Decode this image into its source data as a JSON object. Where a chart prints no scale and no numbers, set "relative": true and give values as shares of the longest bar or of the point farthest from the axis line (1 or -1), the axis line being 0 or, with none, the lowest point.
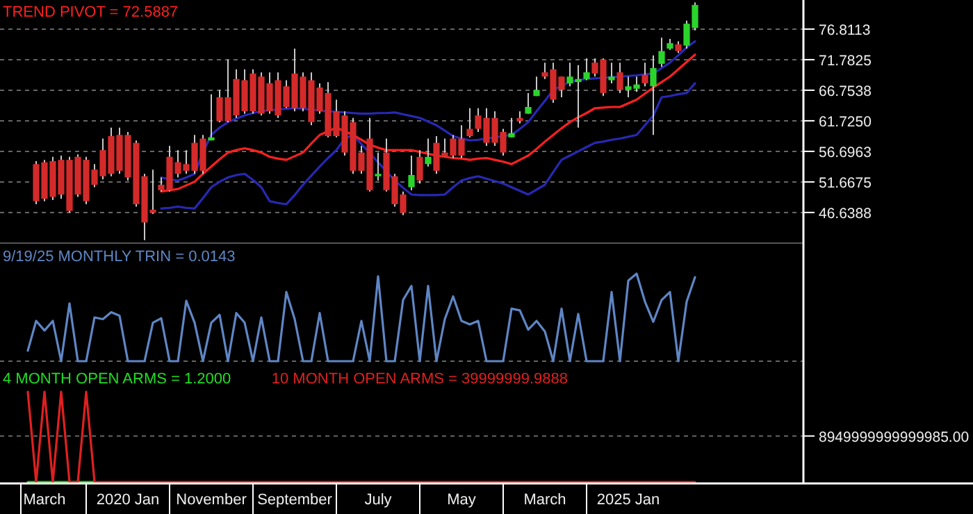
{
  "chart_data": [
    {
      "type": "candlestick",
      "ylim": [
        41.6,
        81.6
      ],
      "grid": "y",
      "tick_labels": "y",
      "yticks": [
        76.8113,
        71.7825,
        66.7538,
        {
          "value": 61.725,
          "label": "61.7250"
        },
        56.6963,
        51.6675,
        46.6388
      ],
      "categories": [
        null,
        null,
        null,
        null,
        null,
        null,
        null,
        null,
        null,
        null,
        null,
        null,
        null,
        null,
        null,
        null,
        null,
        null,
        null,
        null,
        null,
        null,
        null,
        null,
        null,
        null,
        null,
        null,
        null,
        null,
        null,
        null,
        null,
        null,
        null,
        null,
        null,
        null,
        null,
        null,
        null,
        null,
        null,
        null,
        null,
        null,
        null,
        null,
        null,
        null,
        null,
        null,
        null,
        null,
        null,
        null,
        null,
        null,
        null,
        null,
        null,
        null,
        null,
        null,
        null,
        null,
        null,
        null,
        null,
        null,
        null,
        null,
        null,
        null,
        null,
        null,
        null,
        null,
        null,
        null
      ],
      "ohlc": [
        [
          54.6,
          55.1,
          48.0,
          48.5
        ],
        [
          54.9,
          55.3,
          48.5,
          48.9
        ],
        [
          55.1,
          55.8,
          48.7,
          49.2
        ],
        [
          55.3,
          56.0,
          48.9,
          49.6
        ],
        [
          55.3,
          55.8,
          46.6,
          46.9
        ],
        [
          55.8,
          56.2,
          49.2,
          49.6
        ],
        [
          55.3,
          55.8,
          48.0,
          48.5
        ],
        [
          53.7,
          54.6,
          50.8,
          51.2
        ],
        [
          56.9,
          58.8,
          52.1,
          52.6
        ],
        [
          59.2,
          60.6,
          52.6,
          53.0
        ],
        [
          59.4,
          60.6,
          53.0,
          53.5
        ],
        [
          59.4,
          59.9,
          51.9,
          52.4
        ],
        [
          58.1,
          58.5,
          47.6,
          48.0
        ],
        [
          52.6,
          53.0,
          42.1,
          45.0
        ],
        [
          47.1,
          53.7,
          46.4,
          46.6
        ],
        [
          51.2,
          52.4,
          50.1,
          50.3
        ],
        [
          55.8,
          57.6,
          50.1,
          50.3
        ],
        [
          54.9,
          56.9,
          52.4,
          53.0
        ],
        [
          54.6,
          56.9,
          53.0,
          53.5
        ],
        [
          58.1,
          59.4,
          53.0,
          53.5
        ],
        [
          58.8,
          59.4,
          53.0,
          53.5
        ],
        [
          58.5,
          66.1,
          58.5,
          59.0
        ],
        [
          65.6,
          66.8,
          61.5,
          61.7
        ],
        [
          65.6,
          71.8,
          61.5,
          61.7
        ],
        [
          68.6,
          70.2,
          62.2,
          62.6
        ],
        [
          68.4,
          70.2,
          62.9,
          63.3
        ],
        [
          69.5,
          70.2,
          62.9,
          63.3
        ],
        [
          69.0,
          69.7,
          62.6,
          62.9
        ],
        [
          67.9,
          69.7,
          62.9,
          63.3
        ],
        [
          68.4,
          69.7,
          62.2,
          62.6
        ],
        [
          67.4,
          68.4,
          63.8,
          64.0
        ],
        [
          69.5,
          73.6,
          63.3,
          63.8
        ],
        [
          69.0,
          69.7,
          63.3,
          63.8
        ],
        [
          68.4,
          69.7,
          61.0,
          61.5
        ],
        [
          67.2,
          67.9,
          62.9,
          63.3
        ],
        [
          66.3,
          68.1,
          59.0,
          59.2
        ],
        [
          63.3,
          65.2,
          59.0,
          59.2
        ],
        [
          62.6,
          63.3,
          56.0,
          56.5
        ],
        [
          61.5,
          62.2,
          53.0,
          53.5
        ],
        [
          56.5,
          57.6,
          53.0,
          53.5
        ],
        [
          58.8,
          62.2,
          50.1,
          50.3
        ],
        [
          52.6,
          56.5,
          51.9,
          53.0
        ],
        [
          56.5,
          58.8,
          50.1,
          50.3
        ],
        [
          52.6,
          53.0,
          47.6,
          48.0
        ],
        [
          49.6,
          50.1,
          46.2,
          46.6
        ],
        [
          50.8,
          56.0,
          50.3,
          52.8
        ],
        [
          55.8,
          56.9,
          51.4,
          51.9
        ],
        [
          54.6,
          58.8,
          54.2,
          55.8
        ],
        [
          58.1,
          59.2,
          53.0,
          53.5
        ],
        [
          56.5,
          58.8,
          55.8,
          55.8
        ],
        [
          58.8,
          59.4,
          55.6,
          56.0
        ],
        [
          58.8,
          61.0,
          55.6,
          56.0
        ],
        [
          60.4,
          63.8,
          59.0,
          59.2
        ],
        [
          62.6,
          63.8,
          59.9,
          60.4
        ],
        [
          62.2,
          63.8,
          57.6,
          58.1
        ],
        [
          62.2,
          63.3,
          57.6,
          58.1
        ],
        [
          59.9,
          60.4,
          56.0,
          56.5
        ],
        [
          59.0,
          62.2,
          59.0,
          59.7
        ],
        [
          62.2,
          63.3,
          61.3,
          61.7
        ],
        [
          62.9,
          66.3,
          62.9,
          64.0
        ],
        [
          65.8,
          69.0,
          65.8,
          66.8
        ],
        [
          69.7,
          71.3,
          68.6,
          69.0
        ],
        [
          70.2,
          71.3,
          64.7,
          65.2
        ],
        [
          69.0,
          69.0,
          65.6,
          66.8
        ],
        [
          67.9,
          71.3,
          67.4,
          69.0
        ],
        [
          68.1,
          70.9,
          60.6,
          68.6
        ],
        [
          68.6,
          72.0,
          68.4,
          69.7
        ],
        [
          71.3,
          72.0,
          69.0,
          69.5
        ],
        [
          71.8,
          72.0,
          65.8,
          66.3
        ],
        [
          68.4,
          71.3,
          67.9,
          69.0
        ],
        [
          69.7,
          71.3,
          66.3,
          66.8
        ],
        [
          66.8,
          69.0,
          65.6,
          67.4
        ],
        [
          67.0,
          69.0,
          66.5,
          67.7
        ],
        [
          69.3,
          71.3,
          67.4,
          67.9
        ],
        [
          67.4,
          72.5,
          59.4,
          70.4
        ],
        [
          71.1,
          75.4,
          70.6,
          73.2
        ],
        [
          73.6,
          75.2,
          73.4,
          74.5
        ],
        [
          74.3,
          74.8,
          72.9,
          73.2
        ],
        [
          74.1,
          78.2,
          73.6,
          77.7
        ],
        [
          77.0,
          81.2,
          76.6,
          80.79
        ]
      ],
      "colors": [
        "#d42a2a",
        "#d42a2a",
        "#d42a2a",
        "#d42a2a",
        "#d42a2a",
        "#d42a2a",
        "#d42a2a",
        "#d42a2a",
        "#d42a2a",
        "#d42a2a",
        "#d42a2a",
        "#d42a2a",
        "#d42a2a",
        "#d42a2a",
        "#d42a2a",
        "#d42a2a",
        "#d42a2a",
        "#d42a2a",
        "#d42a2a",
        "#d42a2a",
        "#d42a2a",
        "#2bd42b",
        "#d42a2a",
        "#d42a2a",
        "#d42a2a",
        "#d42a2a",
        "#d42a2a",
        "#d42a2a",
        "#d42a2a",
        "#d42a2a",
        "#d42a2a",
        "#d42a2a",
        "#d42a2a",
        "#d42a2a",
        "#d42a2a",
        "#d42a2a",
        "#d42a2a",
        "#d42a2a",
        "#d42a2a",
        "#d42a2a",
        "#d42a2a",
        "#2bd42b",
        "#d42a2a",
        "#d42a2a",
        "#d42a2a",
        "#2bd42b",
        "#d42a2a",
        "#2bd42b",
        "#d42a2a",
        "#d42a2a",
        "#d42a2a",
        "#d42a2a",
        "#d42a2a",
        "#d42a2a",
        "#d42a2a",
        "#d42a2a",
        "#d42a2a",
        "#2bd42b",
        "#d42a2a",
        "#2bd42b",
        "#2bd42b",
        "#d42a2a",
        "#d42a2a",
        "#d42a2a",
        "#2bd42b",
        "#2bd42b",
        "#2bd42b",
        "#d42a2a",
        "#d42a2a",
        "#2bd42b",
        "#d42a2a",
        "#2bd42b",
        "#2bd42b",
        "#d42a2a",
        "#2bd42b",
        "#2bd42b",
        "#2bd42b",
        "#d42a2a",
        "#2bd42b",
        "#2bd42b"
      ],
      "series": [
        {
          "type": "line",
          "color": "#2828b4",
          "values": [
            null,
            null,
            null,
            null,
            null,
            null,
            null,
            null,
            null,
            null,
            null,
            null,
            null,
            null,
            null,
            52.4,
            52.1,
            51.9,
            52.4,
            53.0,
            56.5,
            59.4,
            60.6,
            61.5,
            62.1,
            62.6,
            63.0,
            63.3,
            63.5,
            63.6,
            63.7,
            63.8,
            63.7,
            63.6,
            63.4,
            63.3,
            63.2,
            63.1,
            63.0,
            62.9,
            62.9,
            63.0,
            63.0,
            63.1,
            62.8,
            62.5,
            62.2,
            61.6,
            61.0,
            60.1,
            59.2,
            58.8,
            58.5,
            58.6,
            58.8,
            59.0,
            59.2,
            59.4,
            60.4,
            61.5,
            63.3,
            65.0,
            66.8,
            67.5,
            68.1,
            68.4,
            68.6,
            68.7,
            68.8,
            68.9,
            69.0,
            69.1,
            69.2,
            69.4,
            69.5,
            70.4,
            71.3,
            72.5,
            73.8,
            74.8
          ]
        },
        {
          "type": "line",
          "color": "#2828b4",
          "values": [
            null,
            null,
            null,
            null,
            null,
            null,
            null,
            null,
            null,
            null,
            null,
            null,
            null,
            null,
            null,
            47.3,
            47.4,
            47.6,
            47.4,
            47.3,
            49.0,
            50.8,
            51.7,
            52.4,
            52.8,
            53.0,
            52.0,
            50.8,
            48.5,
            48.2,
            48.0,
            49.5,
            51.2,
            52.7,
            54.2,
            55.6,
            56.9,
            58.8,
            59.4,
            57.9,
            56.4,
            54.9,
            53.4,
            51.9,
            50.7,
            49.6,
            49.5,
            49.5,
            49.5,
            49.6,
            50.8,
            51.9,
            52.3,
            52.6,
            52.2,
            51.8,
            51.4,
            50.8,
            50.2,
            49.6,
            50.4,
            51.2,
            53.3,
            55.3,
            56.0,
            56.7,
            57.4,
            58.1,
            58.3,
            58.6,
            58.8,
            59.1,
            59.4,
            61.0,
            62.6,
            65.6,
            65.8,
            66.1,
            66.3,
            67.9
          ]
        },
        {
          "type": "line",
          "name": "TREND PIVOT = 72.5887",
          "color": "#ff2020",
          "values": [
            null,
            null,
            null,
            null,
            null,
            null,
            null,
            null,
            null,
            null,
            null,
            null,
            null,
            null,
            null,
            50.1,
            50.3,
            50.5,
            51.1,
            51.7,
            53.0,
            54.2,
            55.4,
            56.5,
            56.9,
            57.2,
            56.9,
            56.5,
            55.8,
            55.5,
            55.3,
            55.9,
            56.5,
            58.0,
            59.4,
            60.0,
            60.6,
            60.0,
            59.4,
            58.6,
            57.8,
            57.3,
            56.9,
            56.9,
            56.9,
            56.9,
            56.6,
            56.3,
            56.0,
            55.8,
            55.6,
            55.5,
            55.3,
            55.5,
            55.6,
            55.3,
            55.0,
            54.6,
            55.3,
            56.0,
            57.1,
            58.3,
            59.4,
            60.5,
            61.5,
            62.3,
            63.0,
            63.8,
            63.9,
            64.0,
            64.0,
            64.6,
            65.2,
            66.2,
            67.2,
            68.1,
            69.0,
            70.2,
            71.4,
            72.6
          ]
        }
      ]
    },
    {
      "type": "line",
      "relative": true,
      "tick_labels": false,
      "categories": [
        null,
        null,
        null,
        null,
        null,
        null,
        null,
        null,
        null,
        null,
        null,
        null,
        null,
        null,
        null,
        null,
        null,
        null,
        null,
        null,
        null,
        null,
        null,
        null,
        null,
        null,
        null,
        null,
        null,
        null,
        null,
        null,
        null,
        null,
        null,
        null,
        null,
        null,
        null,
        null,
        null,
        null,
        null,
        null,
        null,
        null,
        null,
        null,
        null,
        null,
        null,
        null,
        null,
        null,
        null,
        null,
        null,
        null,
        null,
        null,
        null,
        null,
        null,
        null,
        null,
        null,
        null,
        null,
        null,
        null,
        null,
        null,
        null,
        null,
        null,
        null,
        null,
        null,
        null,
        null,
        null
      ],
      "series": [
        {
          "name": "9/19/25 MONTHLY TRIN = 0.0143",
          "color": "#5f86c4",
          "values": [
            0.12,
            0.46,
            0.35,
            0.46,
            0,
            0.66,
            0,
            0,
            0.5,
            0.48,
            0.56,
            0.52,
            0,
            0,
            0,
            0.44,
            0.49,
            0,
            0,
            0.69,
            0.44,
            0,
            0.44,
            0.53,
            0,
            0.55,
            0.44,
            0,
            0.5,
            0,
            0,
            0.79,
            0.48,
            0,
            0,
            0.55,
            0,
            0,
            0,
            0,
            0.46,
            0,
            0.97,
            0,
            0,
            0.7,
            0.86,
            0,
            0.86,
            0,
            0.48,
            0.74,
            0.46,
            0.42,
            0.46,
            0,
            0,
            0,
            0.6,
            0.58,
            0.36,
            0.46,
            0.34,
            0,
            0.6,
            0,
            0.54,
            0,
            0,
            0,
            0.79,
            0,
            0.92,
            1,
            0.68,
            0.45,
            0.7,
            0.79,
            0,
            0.68,
            0.96
          ]
        }
      ]
    },
    {
      "type": "line",
      "relative": true,
      "tick_labels": "x",
      "categories": [
        null,
        null,
        "March",
        null,
        null,
        null,
        null,
        null,
        null,
        null,
        null,
        null,
        "2020 Jan",
        null,
        null,
        null,
        null,
        null,
        null,
        null,
        null,
        null,
        "November",
        null,
        null,
        null,
        null,
        null,
        null,
        null,
        null,
        null,
        "September",
        null,
        null,
        null,
        null,
        null,
        null,
        null,
        null,
        null,
        "July",
        null,
        null,
        null,
        null,
        null,
        null,
        null,
        null,
        null,
        "May",
        null,
        null,
        null,
        null,
        null,
        null,
        null,
        null,
        null,
        "March",
        null,
        null,
        null,
        null,
        null,
        null,
        null,
        null,
        null,
        "2025 Jan",
        null,
        null,
        null,
        null,
        null,
        null,
        null,
        null
      ],
      "ref_lines": [
        {
          "axis": "y",
          "value": 0.51,
          "color": "#666666",
          "line_style": "dashed"
        }
      ],
      "annotations": [
        "8949999999999985.00"
      ],
      "series": [
        {
          "name": "4 MONTH OPEN ARMS = 1.2000",
          "color": "#22dd22",
          "values": [
            0,
            0,
            0,
            0,
            0,
            0,
            0,
            0,
            0,
            null,
            null,
            null,
            null,
            null,
            null,
            null,
            null,
            null,
            null,
            null,
            null,
            null,
            null,
            null,
            null,
            null,
            null,
            null,
            null,
            null,
            null,
            null,
            null,
            null,
            null,
            null,
            null,
            null,
            null,
            null,
            null,
            null,
            null,
            null,
            null,
            null,
            null,
            null,
            null,
            null,
            null,
            null,
            null,
            null,
            null,
            null,
            null,
            null,
            null,
            null,
            null,
            null,
            null,
            null,
            null,
            null,
            null,
            null,
            null,
            null,
            null,
            null,
            null,
            null,
            null,
            null,
            null,
            null,
            null,
            null,
            null
          ]
        },
        {
          "name": "10 MONTH OPEN ARMS = 39999999.9888",
          "color": "#e02020",
          "values": [
            1,
            0,
            1,
            0,
            1,
            0,
            0,
            1,
            0,
            0,
            0,
            0,
            0,
            0,
            0,
            0,
            0,
            0,
            0,
            0,
            0,
            0,
            0,
            0,
            0,
            0,
            0,
            0,
            0,
            0,
            0,
            0,
            0,
            0,
            0,
            0,
            0,
            0,
            0,
            0,
            0,
            0,
            0,
            0,
            0,
            0,
            0,
            0,
            0,
            0,
            0,
            0,
            0,
            0,
            0,
            0,
            0,
            0,
            0,
            0,
            0,
            0,
            0,
            0,
            0,
            0,
            0,
            0,
            0,
            0,
            0,
            0,
            0,
            0,
            0,
            0,
            0,
            0,
            0,
            0,
            0
          ]
        }
      ]
    }
  ]
}
